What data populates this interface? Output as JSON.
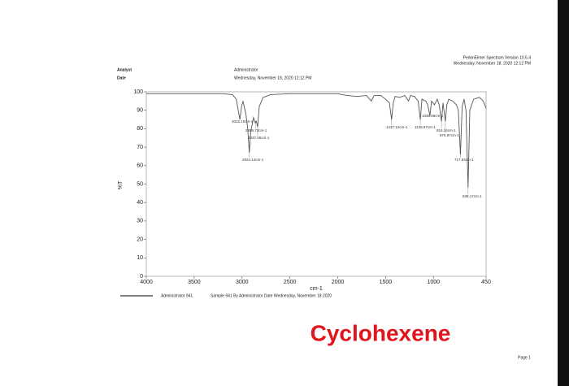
{
  "chart_data": {
    "type": "line",
    "header": {
      "analyst_label": "Analyst",
      "date_label": "Date",
      "analyst": "Administrator",
      "date": "Wednesday, November 18, 2020 12:12 PM"
    },
    "software": "PerkinElmer Spectrum Version 10.5.4",
    "software_date": "Wednesday, November 18, 2020 12:12 PM",
    "xlabel": "cm-1",
    "ylabel": "%T",
    "xlim": [
      4000,
      450
    ],
    "ylim": [
      0,
      100
    ],
    "xticks": [
      4000,
      3500,
      3000,
      2500,
      2000,
      1500,
      1000,
      450
    ],
    "yticks": [
      0,
      10,
      20,
      30,
      40,
      50,
      60,
      70,
      80,
      90,
      100
    ],
    "x": [
      4000,
      3800,
      3500,
      3200,
      3100,
      3060,
      3040,
      3022.1,
      3005,
      2990,
      2960,
      2940,
      2924.14,
      2910,
      2880,
      2860,
      2856.73,
      2850,
      2837.06,
      2820,
      2780,
      2700,
      2500,
      2200,
      2000,
      1900,
      1800,
      1700,
      1650,
      1620,
      1550,
      1500,
      1460,
      1437.12,
      1420,
      1400,
      1350,
      1300,
      1260,
      1240,
      1200,
      1160,
      1136.87,
      1120,
      1080,
      1060,
      1036.56,
      1020,
      990,
      960,
      940,
      916.14,
      900,
      875.97,
      860,
      840,
      800,
      760,
      740,
      717.93,
      700,
      680,
      660,
      638.17,
      620,
      580,
      520,
      480,
      450
    ],
    "series": [
      {
        "name": "Administrator 941",
        "color": "#555555",
        "values": [
          99,
          99,
          99,
          99,
          98.5,
          96,
          90,
          85,
          92,
          95,
          88,
          80,
          67,
          78,
          86,
          83,
          84,
          84,
          81,
          92,
          97,
          98.5,
          99,
          99,
          99,
          98,
          97.5,
          98,
          95,
          98,
          98,
          96,
          94,
          85,
          94,
          97.5,
          97,
          98,
          95,
          98,
          97.5,
          95,
          85,
          96,
          95,
          93,
          87,
          95,
          93,
          96,
          93,
          84,
          94,
          84,
          93,
          96,
          95,
          93,
          90,
          66,
          92,
          96,
          90,
          48,
          90,
          96,
          97,
          95,
          91
        ]
      }
    ],
    "legend_note": "Sample 941 By Administrator Date Wednesday, November 18 2020",
    "annotations": [
      {
        "x": 3022.1,
        "y": 85,
        "label": "3022.10cm-1"
      },
      {
        "x": 2856.73,
        "y": 84,
        "label": "2856.73cm-1"
      },
      {
        "x": 2837.06,
        "y": 81,
        "label": "2837.06cm-1"
      },
      {
        "x": 2924.14,
        "y": 67,
        "label": "2924.14cm-1"
      },
      {
        "x": 1437.12,
        "y": 85,
        "label": "1437.12cm-1"
      },
      {
        "x": 1136.87,
        "y": 85,
        "label": "1136.87cm-1"
      },
      {
        "x": 1036.56,
        "y": 87,
        "label": "1036.56cm-1"
      },
      {
        "x": 916.14,
        "y": 84,
        "label": "916.14cm-1"
      },
      {
        "x": 875.97,
        "y": 84,
        "label": "875.97cm-1"
      },
      {
        "x": 717.93,
        "y": 66,
        "label": "717.93cm-1"
      },
      {
        "x": 638.17,
        "y": 48,
        "label": "638.17cm-1"
      }
    ],
    "stamp": "Cyclohexene",
    "page": "Page 1"
  }
}
